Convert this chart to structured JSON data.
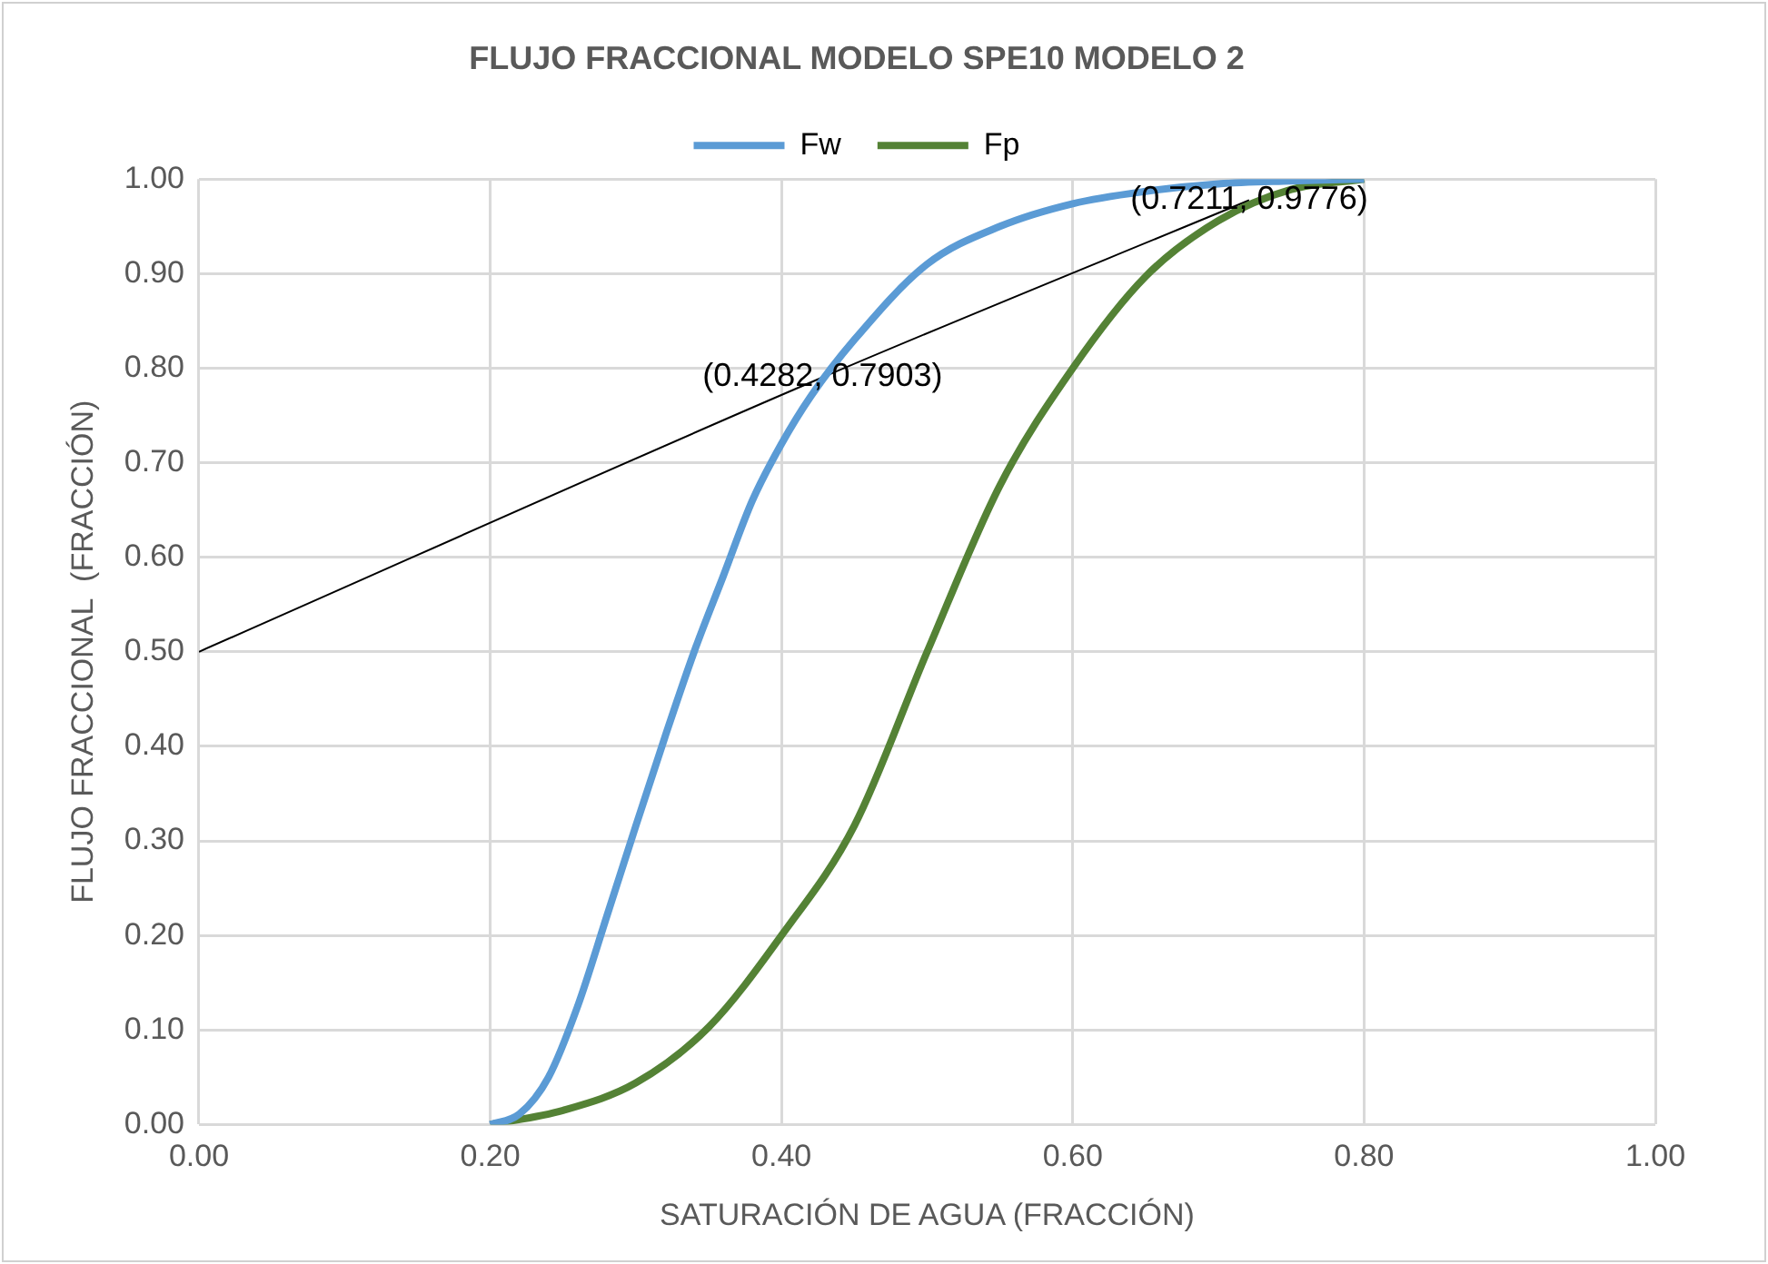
{
  "chart_data": {
    "type": "line",
    "title": "FLUJO FRACCIONAL MODELO SPE10 MODELO 2",
    "xlabel": "SATURACIÓN DE AGUA (FRACCIÓN)",
    "ylabel": "FLUJO FRACCIONAL  (FRACCIÓN)",
    "series": [
      {
        "name": "Fw",
        "color": "#5b9bd5",
        "x": [
          0.2,
          0.22,
          0.24,
          0.26,
          0.28,
          0.3,
          0.32,
          0.34,
          0.36,
          0.38,
          0.4,
          0.42,
          0.45,
          0.5,
          0.55,
          0.6,
          0.65,
          0.7,
          0.75,
          0.8
        ],
        "values": [
          0,
          0.011,
          0.05,
          0.125,
          0.22,
          0.316,
          0.41,
          0.5,
          0.58,
          0.66,
          0.72,
          0.77,
          0.83,
          0.91,
          0.95,
          0.974,
          0.987,
          0.995,
          0.998,
          1.0
        ]
      },
      {
        "name": "Fp",
        "color": "#548235",
        "x": [
          0.2,
          0.25,
          0.3,
          0.35,
          0.4,
          0.45,
          0.5,
          0.55,
          0.6,
          0.65,
          0.7,
          0.75,
          0.8
        ],
        "values": [
          0,
          0.015,
          0.044,
          0.103,
          0.2,
          0.316,
          0.5,
          0.676,
          0.8,
          0.897,
          0.956,
          0.989,
          1.0
        ]
      },
      {
        "color": "#000000",
        "x": [
          0,
          0.4282,
          0.7211
        ],
        "values": [
          0.5,
          0.7903,
          0.9776
        ]
      }
    ],
    "annotations": [
      {
        "text": "(0.4282, 0.7903)",
        "x": 0.4282,
        "y": 0.7903
      },
      {
        "text": "(0.7211, 0.9776)",
        "x": 0.7211,
        "y": 0.9776
      }
    ],
    "xlim": [
      0,
      1
    ],
    "xticks": [
      {
        "value": 0,
        "label": "0.00"
      },
      {
        "value": 0.2,
        "label": "0.20"
      },
      {
        "value": 0.4,
        "label": "0.40"
      },
      {
        "value": 0.6,
        "label": "0.60"
      },
      {
        "value": 0.8,
        "label": "0.80"
      },
      {
        "value": 1,
        "label": "1.00"
      }
    ],
    "ylim": [
      0,
      1
    ],
    "yticks": [
      {
        "value": 0,
        "label": "0.00"
      },
      {
        "value": 0.1,
        "label": "0.10"
      },
      {
        "value": 0.2,
        "label": "0.20"
      },
      {
        "value": 0.3,
        "label": "0.30"
      },
      {
        "value": 0.4,
        "label": "0.40"
      },
      {
        "value": 0.5,
        "label": "0.50"
      },
      {
        "value": 0.6,
        "label": "0.60"
      },
      {
        "value": 0.7,
        "label": "0.70"
      },
      {
        "value": 0.8,
        "label": "0.80"
      },
      {
        "value": 0.9,
        "label": "0.90"
      },
      {
        "value": 1,
        "label": "1.00"
      }
    ],
    "grid": true,
    "legend": "top",
    "marker": "none",
    "line_style": "solid"
  }
}
